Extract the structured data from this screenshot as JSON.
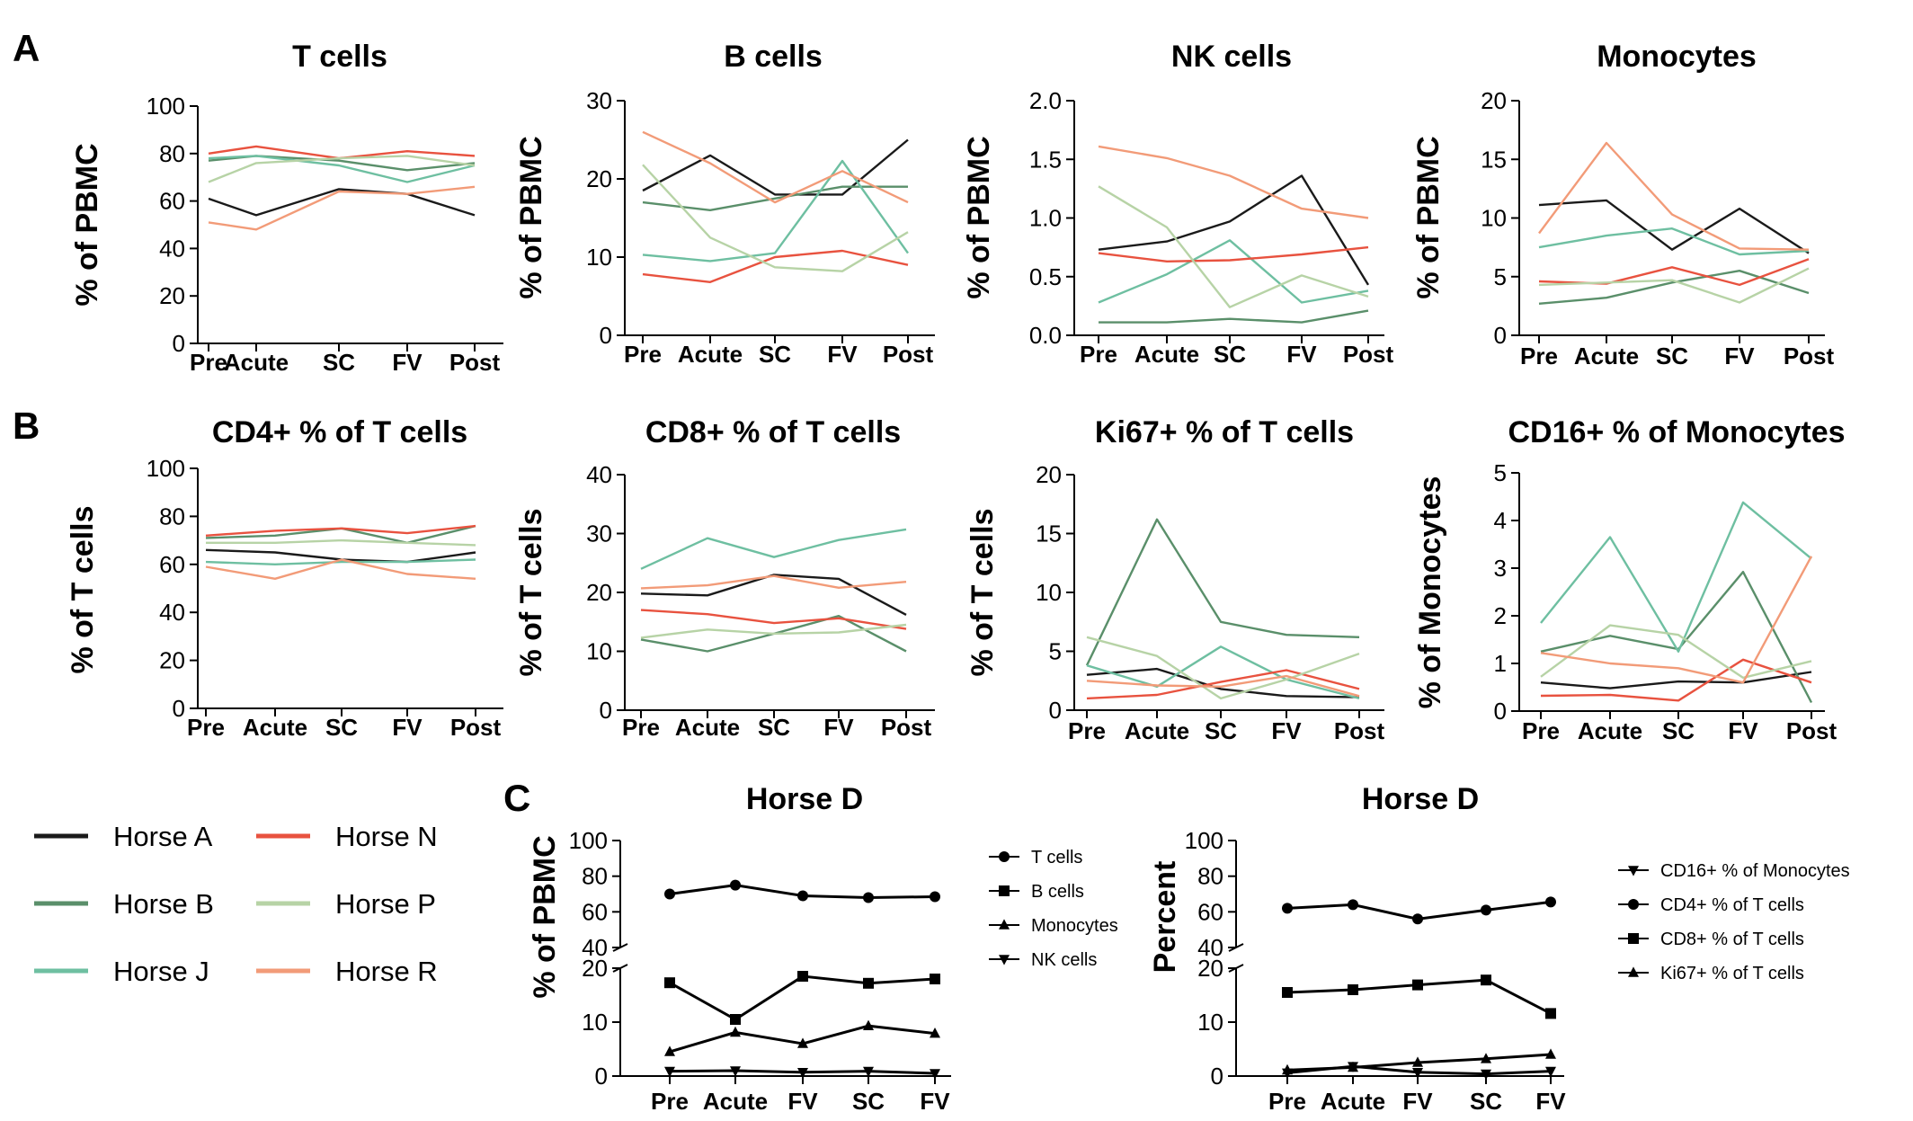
{
  "panel_labels": {
    "A": "A",
    "B": "B",
    "C": "C"
  },
  "chart_data": [
    {
      "type": "line",
      "title": "T cells",
      "ylabel": "% of PBMC",
      "ylim": [
        0,
        100
      ],
      "yticks": [
        "0",
        "20",
        "40",
        "60",
        "80",
        "100"
      ],
      "categories": [
        "Pre",
        "Acute",
        "SC",
        "FV",
        "Post"
      ],
      "series": [
        {
          "name": "Horse A",
          "values": [
            61,
            54,
            65,
            63,
            54
          ]
        },
        {
          "name": "Horse B",
          "values": [
            77,
            79,
            77,
            73,
            76
          ]
        },
        {
          "name": "Horse J",
          "values": [
            78,
            79,
            75,
            68,
            75
          ]
        },
        {
          "name": "Horse N",
          "values": [
            80,
            83,
            78,
            81,
            79
          ]
        },
        {
          "name": "Horse P",
          "values": [
            68,
            76,
            78,
            79,
            75
          ]
        },
        {
          "name": "Horse R",
          "values": [
            51,
            48,
            64,
            63,
            66
          ]
        }
      ]
    },
    {
      "type": "line",
      "title": "B cells",
      "ylabel": "% of PBMC",
      "ylim": [
        0,
        30
      ],
      "yticks": [
        "0",
        "10",
        "20",
        "30"
      ],
      "categories": [
        "Pre",
        "Acute",
        "SC",
        "FV",
        "Post"
      ],
      "series": [
        {
          "name": "Horse A",
          "values": [
            18.5,
            23,
            18,
            18,
            25
          ]
        },
        {
          "name": "Horse B",
          "values": [
            17,
            16,
            17.5,
            19,
            19
          ]
        },
        {
          "name": "Horse J",
          "values": [
            10.3,
            9.5,
            10.5,
            22.3,
            10.5
          ]
        },
        {
          "name": "Horse N",
          "values": [
            7.8,
            6.8,
            10,
            10.8,
            9
          ]
        },
        {
          "name": "Horse P",
          "values": [
            21.8,
            12.5,
            8.7,
            8.2,
            13.2
          ]
        },
        {
          "name": "Horse R",
          "values": [
            26,
            22,
            17,
            21,
            17
          ]
        }
      ]
    },
    {
      "type": "line",
      "title": "NK cells",
      "ylabel": "% of PBMC",
      "ylim": [
        0,
        2.0
      ],
      "yticks": [
        "0.0",
        "0.5",
        "1.0",
        "1.5",
        "2.0"
      ],
      "categories": [
        "Pre",
        "Acute",
        "SC",
        "FV",
        "Post"
      ],
      "series": [
        {
          "name": "Horse A",
          "values": [
            0.73,
            0.8,
            0.97,
            1.36,
            0.43
          ]
        },
        {
          "name": "Horse B",
          "values": [
            0.11,
            0.11,
            0.14,
            0.11,
            0.21
          ]
        },
        {
          "name": "Horse J",
          "values": [
            0.28,
            0.52,
            0.81,
            0.28,
            0.38
          ]
        },
        {
          "name": "Horse N",
          "values": [
            0.7,
            0.63,
            0.64,
            0.69,
            0.75
          ]
        },
        {
          "name": "Horse P",
          "values": [
            1.27,
            0.92,
            0.24,
            0.51,
            0.33
          ]
        },
        {
          "name": "Horse R",
          "values": [
            1.61,
            1.51,
            1.36,
            1.08,
            1.0
          ]
        }
      ]
    },
    {
      "type": "line",
      "title": "Monocytes",
      "ylabel": "% of PBMC",
      "ylim": [
        0,
        20
      ],
      "yticks": [
        "0",
        "5",
        "10",
        "15",
        "20"
      ],
      "categories": [
        "Pre",
        "Acute",
        "SC",
        "FV",
        "Post"
      ],
      "series": [
        {
          "name": "Horse A",
          "values": [
            11.1,
            11.5,
            7.3,
            10.8,
            7.0
          ]
        },
        {
          "name": "Horse B",
          "values": [
            2.7,
            3.2,
            4.5,
            5.5,
            3.6
          ]
        },
        {
          "name": "Horse J",
          "values": [
            7.5,
            8.5,
            9.1,
            6.9,
            7.2
          ]
        },
        {
          "name": "Horse N",
          "values": [
            4.6,
            4.4,
            5.8,
            4.3,
            6.5
          ]
        },
        {
          "name": "Horse P",
          "values": [
            4.3,
            4.5,
            4.7,
            2.8,
            5.7
          ]
        },
        {
          "name": "Horse R",
          "values": [
            8.7,
            16.4,
            10.3,
            7.4,
            7.3
          ]
        }
      ]
    },
    {
      "type": "line",
      "title": "CD4+ % of T cells",
      "ylabel": "% of T cells",
      "ylim": [
        0,
        100
      ],
      "yticks": [
        "0",
        "20",
        "40",
        "60",
        "80",
        "100"
      ],
      "categories": [
        "Pre",
        "Acute",
        "SC",
        "FV",
        "Post"
      ],
      "series": [
        {
          "name": "Horse A",
          "values": [
            66,
            65,
            62,
            61,
            65
          ]
        },
        {
          "name": "Horse B",
          "values": [
            71,
            72,
            75,
            69,
            76
          ]
        },
        {
          "name": "Horse J",
          "values": [
            61,
            60,
            61,
            61,
            62
          ]
        },
        {
          "name": "Horse N",
          "values": [
            72,
            74,
            75,
            73,
            76
          ]
        },
        {
          "name": "Horse P",
          "values": [
            69,
            69,
            70,
            69,
            68
          ]
        },
        {
          "name": "Horse R",
          "values": [
            59,
            54,
            62,
            56,
            54
          ]
        }
      ]
    },
    {
      "type": "line",
      "title": "CD8+ % of T cells",
      "ylabel": "% of T cells",
      "ylim": [
        0,
        40
      ],
      "yticks": [
        "0",
        "10",
        "20",
        "30",
        "40"
      ],
      "categories": [
        "Pre",
        "Acute",
        "SC",
        "FV",
        "Post"
      ],
      "series": [
        {
          "name": "Horse A",
          "values": [
            19.8,
            19.5,
            23,
            22.3,
            16.2
          ]
        },
        {
          "name": "Horse B",
          "values": [
            12,
            10,
            13,
            16,
            10
          ]
        },
        {
          "name": "Horse J",
          "values": [
            24,
            29.2,
            26,
            28.9,
            30.7
          ]
        },
        {
          "name": "Horse N",
          "values": [
            17,
            16.3,
            14.8,
            15.6,
            13.8
          ]
        },
        {
          "name": "Horse P",
          "values": [
            12.3,
            13.7,
            13,
            13.2,
            14.5
          ]
        },
        {
          "name": "Horse R",
          "values": [
            20.7,
            21.2,
            22.8,
            20.8,
            21.8
          ]
        }
      ]
    },
    {
      "type": "line",
      "title": "Ki67+ % of T cells",
      "ylabel": "% of T cells",
      "ylim": [
        0,
        20
      ],
      "yticks": [
        "0",
        "5",
        "10",
        "15",
        "20"
      ],
      "categories": [
        "Pre",
        "Acute",
        "SC",
        "FV",
        "Post"
      ],
      "series": [
        {
          "name": "Horse A",
          "values": [
            3.0,
            3.5,
            1.8,
            1.2,
            1.1
          ]
        },
        {
          "name": "Horse B",
          "values": [
            3.8,
            16.2,
            7.5,
            6.4,
            6.2
          ]
        },
        {
          "name": "Horse J",
          "values": [
            3.8,
            2.0,
            5.4,
            2.6,
            1.0
          ]
        },
        {
          "name": "Horse N",
          "values": [
            1.0,
            1.3,
            2.4,
            3.4,
            1.8
          ]
        },
        {
          "name": "Horse P",
          "values": [
            6.2,
            4.6,
            1.0,
            2.6,
            4.8
          ]
        },
        {
          "name": "Horse R",
          "values": [
            2.5,
            2.1,
            2.0,
            2.9,
            1.2
          ]
        }
      ]
    },
    {
      "type": "line",
      "title": "CD16+ % of Monocytes",
      "ylabel": "% of Monocytes",
      "ylim": [
        0,
        5
      ],
      "yticks": [
        "0",
        "1",
        "2",
        "3",
        "4",
        "5"
      ],
      "categories": [
        "Pre",
        "Acute",
        "SC",
        "FV",
        "Post"
      ],
      "series": [
        {
          "name": "Horse A",
          "values": [
            0.6,
            0.48,
            0.62,
            0.6,
            0.82
          ]
        },
        {
          "name": "Horse B",
          "values": [
            1.25,
            1.58,
            1.3,
            2.92,
            0.18
          ]
        },
        {
          "name": "Horse J",
          "values": [
            1.85,
            3.65,
            1.25,
            4.38,
            3.2
          ]
        },
        {
          "name": "Horse N",
          "values": [
            0.32,
            0.34,
            0.22,
            1.08,
            0.6
          ]
        },
        {
          "name": "Horse P",
          "values": [
            0.72,
            1.8,
            1.6,
            0.7,
            1.05
          ]
        },
        {
          "name": "Horse R",
          "values": [
            1.22,
            1.0,
            0.9,
            0.6,
            3.25
          ]
        }
      ]
    },
    {
      "type": "line",
      "title": "Horse D",
      "ylabel": "% of PBMC",
      "yticks_low": [
        "0",
        "10",
        "20"
      ],
      "yticks_high": [
        "40",
        "60",
        "80",
        "100"
      ],
      "categories": [
        "Pre",
        "Acute",
        "FV",
        "SC",
        "FV"
      ],
      "series": [
        {
          "name": "T cells",
          "marker": "circle",
          "values": [
            70,
            75,
            69,
            68,
            68.5
          ]
        },
        {
          "name": "B cells",
          "marker": "square",
          "values": [
            17.3,
            10.5,
            18.5,
            17.2,
            18
          ]
        },
        {
          "name": "Monocytes",
          "marker": "triangle-up",
          "values": [
            4.5,
            8.1,
            6,
            9.3,
            7.9
          ]
        },
        {
          "name": "NK cells",
          "marker": "triangle-down",
          "values": [
            0.9,
            1.0,
            0.7,
            0.9,
            0.5
          ]
        }
      ]
    },
    {
      "type": "line",
      "title": "Horse D",
      "ylabel": "Percent",
      "yticks_low": [
        "0",
        "10",
        "20"
      ],
      "yticks_high": [
        "40",
        "60",
        "80",
        "100"
      ],
      "categories": [
        "Pre",
        "Acute",
        "FV",
        "SC",
        "FV"
      ],
      "series": [
        {
          "name": "CD16+ % of Monocytes",
          "marker": "triangle-down",
          "values": [
            0.6,
            1.8,
            0.7,
            0.4,
            0.9
          ]
        },
        {
          "name": "CD4+ % of T cells",
          "marker": "circle",
          "values": [
            62,
            64,
            56,
            61,
            65.5
          ]
        },
        {
          "name": "CD8+ % of T cells",
          "marker": "square",
          "values": [
            15.5,
            16,
            16.9,
            17.8,
            11.6
          ]
        },
        {
          "name": "Ki67+ % of T cells",
          "marker": "triangle-up",
          "values": [
            1.1,
            1.6,
            2.5,
            3.2,
            4.0
          ]
        }
      ]
    }
  ],
  "horse_legend": [
    {
      "name": "Horse A",
      "color": "#1a1a1a"
    },
    {
      "name": "Horse N",
      "color": "#e8523f"
    },
    {
      "name": "Horse B",
      "color": "#5a8f6a"
    },
    {
      "name": "Horse P",
      "color": "#b7d3a6"
    },
    {
      "name": "Horse J",
      "color": "#6ebfa1"
    },
    {
      "name": "Horse R",
      "color": "#f29b78"
    }
  ],
  "colors": {
    "Horse A": "#1a1a1a",
    "Horse B": "#5a8f6a",
    "Horse J": "#6ebfa1",
    "Horse N": "#e8523f",
    "Horse P": "#b7d3a6",
    "Horse R": "#f29b78"
  }
}
